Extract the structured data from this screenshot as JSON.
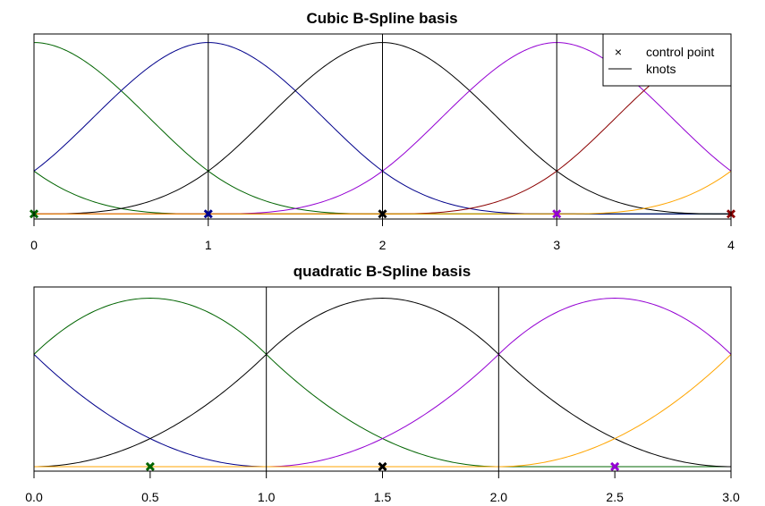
{
  "chart_data": [
    {
      "type": "line",
      "title": "Cubic B-Spline basis",
      "xlabel": "",
      "ylabel": "",
      "xlim": [
        0,
        4
      ],
      "ylim": [
        -0.02,
        0.7
      ],
      "x_ticks": [
        "0",
        "1",
        "2",
        "3",
        "4"
      ],
      "x_tick_values": [
        0,
        1,
        2,
        3,
        4
      ],
      "grid": false,
      "legend": {
        "placement": "top-right",
        "entries": [
          {
            "label": "control point",
            "symbol": "×"
          },
          {
            "label": "knots",
            "symbol": "line"
          }
        ]
      },
      "knots": [
        1,
        2,
        3
      ],
      "basis_type": "cubic",
      "series": [
        {
          "center": -1,
          "color": "#006400"
        },
        {
          "center": 0,
          "color": "#006400"
        },
        {
          "center": 1,
          "color": "#00008B"
        },
        {
          "center": 2,
          "color": "#000000"
        },
        {
          "center": 3,
          "color": "#9400D3"
        },
        {
          "center": 4,
          "color": "#8B0000"
        },
        {
          "center": 5,
          "color": "#FFA500"
        }
      ],
      "control_points": [
        {
          "x": 0,
          "color": "#006400"
        },
        {
          "x": 1,
          "color": "#00008B"
        },
        {
          "x": 2,
          "color": "#000000"
        },
        {
          "x": 3,
          "color": "#9400D3"
        },
        {
          "x": 4,
          "color": "#8B0000"
        }
      ]
    },
    {
      "type": "line",
      "title": "quadratic B-Spline basis",
      "xlabel": "",
      "ylabel": "",
      "xlim": [
        0,
        3
      ],
      "ylim": [
        -0.02,
        0.8
      ],
      "x_ticks": [
        "0.0",
        "0.5",
        "1.0",
        "1.5",
        "2.0",
        "2.5",
        "3.0"
      ],
      "x_tick_values": [
        0,
        0.5,
        1,
        1.5,
        2,
        2.5,
        3
      ],
      "grid": false,
      "knots": [
        1,
        2
      ],
      "basis_type": "quadratic",
      "series": [
        {
          "center": -0.5,
          "color": "#00008B"
        },
        {
          "center": 0.5,
          "color": "#006400"
        },
        {
          "center": 1.5,
          "color": "#000000"
        },
        {
          "center": 2.5,
          "color": "#9400D3"
        },
        {
          "center": 3.5,
          "color": "#FFA500"
        }
      ],
      "control_points": [
        {
          "x": 0.5,
          "color": "#006400"
        },
        {
          "x": 1.5,
          "color": "#000000"
        },
        {
          "x": 2.5,
          "color": "#9400D3"
        }
      ]
    }
  ]
}
